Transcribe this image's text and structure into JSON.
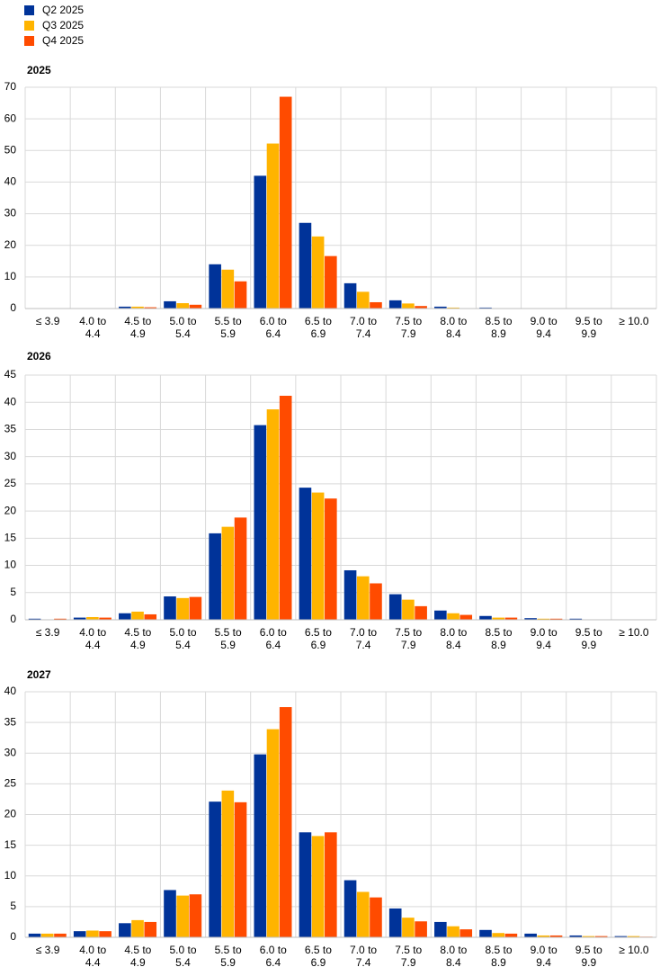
{
  "chart_data": [
    {
      "type": "bar",
      "title": "2025",
      "categories": [
        "≤ 3.9",
        "4.0 to 4.4",
        "4.5 to 4.9",
        "5.0 to 5.4",
        "5.5 to 5.9",
        "6.0 to 6.4",
        "6.5 to 6.9",
        "7.0 to 7.4",
        "7.5 to 7.9",
        "8.0 to 8.4",
        "8.5 to 8.9",
        "9.0 to 9.4",
        "9.5 to 9.9",
        "≥ 10.0"
      ],
      "series": [
        {
          "name": "Q2 2025",
          "color": "#003399",
          "values": [
            0,
            0,
            0.6,
            2.3,
            14,
            42,
            27.1,
            8,
            2.6,
            0.6,
            0.3,
            0,
            0,
            0
          ]
        },
        {
          "name": "Q3 2025",
          "color": "#ffb400",
          "values": [
            0,
            0,
            0.6,
            1.7,
            12.3,
            52.2,
            22.8,
            5.3,
            1.6,
            0.3,
            0.1,
            0,
            0,
            0
          ]
        },
        {
          "name": "Q4 2025",
          "color": "#ff4b00",
          "values": [
            0,
            0,
            0.4,
            1.2,
            8.6,
            67,
            16.6,
            2,
            0.8,
            0.1,
            0,
            0,
            0,
            0
          ]
        }
      ],
      "ylim": [
        0,
        70
      ],
      "yticks": [
        0,
        10,
        20,
        30,
        40,
        50,
        60,
        70
      ],
      "grid": true
    },
    {
      "type": "bar",
      "title": "2026",
      "categories": [
        "≤ 3.9",
        "4.0 to 4.4",
        "4.5 to 4.9",
        "5.0 to 5.4",
        "5.5 to 5.9",
        "6.0 to 6.4",
        "6.5 to 6.9",
        "7.0 to 7.4",
        "7.5 to 7.9",
        "8.0 to 8.4",
        "8.5 to 8.9",
        "9.0 to 9.4",
        "9.5 to 9.9",
        "≥ 10.0"
      ],
      "series": [
        {
          "name": "Q2 2025",
          "color": "#003399",
          "values": [
            0.2,
            0.4,
            1.2,
            4.3,
            15.9,
            35.8,
            24.3,
            9.1,
            4.7,
            1.7,
            0.7,
            0.3,
            0.2,
            0
          ]
        },
        {
          "name": "Q3 2025",
          "color": "#ffb400",
          "values": [
            0,
            0.5,
            1.5,
            4.0,
            17.1,
            38.7,
            23.4,
            8.0,
            3.7,
            1.2,
            0.4,
            0.2,
            0,
            0
          ]
        },
        {
          "name": "Q4 2025",
          "color": "#ff4b00",
          "values": [
            0.2,
            0.4,
            1.0,
            4.2,
            18.8,
            41.2,
            22.3,
            6.7,
            2.5,
            0.9,
            0.4,
            0.2,
            0,
            0
          ]
        }
      ],
      "ylim": [
        0,
        45
      ],
      "yticks": [
        0,
        5,
        10,
        15,
        20,
        25,
        30,
        35,
        40,
        45
      ],
      "grid": true
    },
    {
      "type": "bar",
      "title": "2027",
      "categories": [
        "≤ 3.9",
        "4.0 to 4.4",
        "4.5 to 4.9",
        "5.0 to 5.4",
        "5.5 to 5.9",
        "6.0 to 6.4",
        "6.5 to 6.9",
        "7.0 to 7.4",
        "7.5 to 7.9",
        "8.0 to 8.4",
        "8.5 to 8.9",
        "9.0 to 9.4",
        "9.5 to 9.9",
        "≥ 10.0"
      ],
      "series": [
        {
          "name": "Q2 2025",
          "color": "#003399",
          "values": [
            0.6,
            1.0,
            2.3,
            7.7,
            22.1,
            29.8,
            17.1,
            9.3,
            4.7,
            2.5,
            1.2,
            0.6,
            0.3,
            0.2
          ]
        },
        {
          "name": "Q3 2025",
          "color": "#ffb400",
          "values": [
            0.6,
            1.1,
            2.8,
            6.8,
            23.9,
            33.9,
            16.5,
            7.4,
            3.2,
            1.8,
            0.7,
            0.3,
            0.2,
            0.2
          ]
        },
        {
          "name": "Q4 2025",
          "color": "#ff4b00",
          "values": [
            0.6,
            1.0,
            2.5,
            7.0,
            22.0,
            37.5,
            17.1,
            6.5,
            2.6,
            1.3,
            0.6,
            0.3,
            0.2,
            0.1
          ]
        }
      ],
      "ylim": [
        0,
        40
      ],
      "yticks": [
        0,
        5,
        10,
        15,
        20,
        25,
        30,
        35,
        40
      ],
      "grid": true
    }
  ]
}
